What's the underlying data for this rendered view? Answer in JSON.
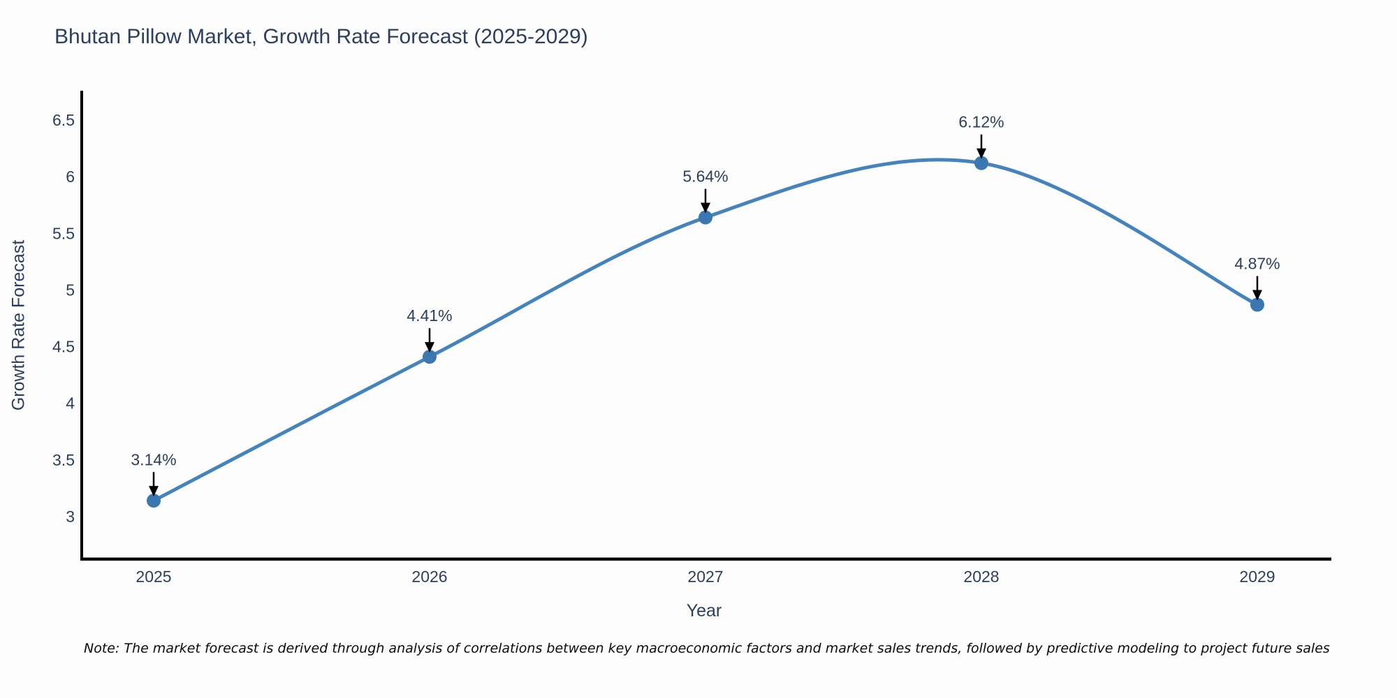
{
  "title": "Bhutan Pillow Market, Growth Rate Forecast (2025-2029)",
  "note": "Note: The market forecast is derived through analysis of correlations between key macroeconomic factors and market sales trends, followed by predictive modeling to project future sales",
  "chart_data": {
    "type": "line",
    "title": "Bhutan Pillow Market, Growth Rate Forecast (2025-2029)",
    "xlabel": "Year",
    "ylabel": "Growth Rate Forecast",
    "x": [
      2025,
      2026,
      2027,
      2028,
      2029
    ],
    "values": [
      3.14,
      4.41,
      5.64,
      6.12,
      4.87
    ],
    "point_labels": [
      "3.14%",
      "4.41%",
      "5.64%",
      "6.12%",
      "4.87%"
    ],
    "x_tick_labels": [
      "2025",
      "2026",
      "2027",
      "2028",
      "2029"
    ],
    "yticks": [
      3,
      3.5,
      4,
      4.5,
      5,
      5.5,
      6,
      6.5
    ],
    "ylim": [
      2.6,
      6.77
    ],
    "line_shape": "spline",
    "grid": false,
    "legend": null,
    "colors": {
      "line": "#4583bd",
      "marker": "#3b77b0",
      "arrow": "#000000",
      "text": "#2a3f5f",
      "axis": "#000000",
      "background": "#fdfdfd"
    }
  }
}
